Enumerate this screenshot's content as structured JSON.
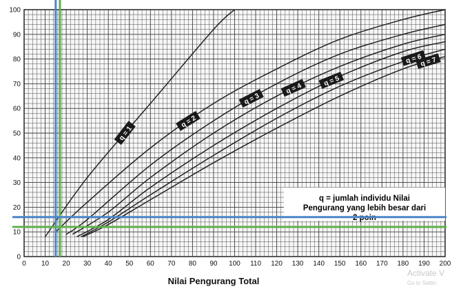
{
  "chart_data": {
    "type": "line",
    "xlabel": "Nilai Pengurang Total",
    "ylabel": "",
    "xlim": [
      0,
      200
    ],
    "ylim": [
      0,
      100
    ],
    "x_ticks": [
      0,
      10,
      20,
      30,
      40,
      50,
      60,
      70,
      80,
      90,
      100,
      110,
      120,
      130,
      140,
      150,
      160,
      170,
      180,
      190,
      200
    ],
    "y_ticks": [
      0,
      10,
      20,
      30,
      40,
      50,
      60,
      70,
      80,
      90,
      100
    ],
    "grid": true,
    "series": [
      {
        "name": "q = 1",
        "x": [
          10,
          30,
          60,
          90,
          100
        ],
        "y": [
          8,
          32,
          62,
          92,
          100
        ]
      },
      {
        "name": "q = 2",
        "x": [
          15,
          30,
          60,
          90,
          120,
          150,
          180,
          200
        ],
        "y": [
          10,
          22,
          44,
          62,
          76,
          88,
          96,
          100
        ]
      },
      {
        "name": "q = 3",
        "x": [
          20,
          30,
          60,
          90,
          120,
          150,
          180,
          200
        ],
        "y": [
          9,
          15,
          37,
          55,
          70,
          82,
          90,
          94
        ]
      },
      {
        "name": "q = 4",
        "x": [
          23,
          40,
          60,
          90,
          120,
          150,
          180,
          200
        ],
        "y": [
          9,
          18,
          32,
          50,
          65,
          77,
          86,
          90
        ]
      },
      {
        "name": "q = 5",
        "x": [
          25,
          40,
          60,
          90,
          120,
          150,
          180,
          200
        ],
        "y": [
          8,
          15,
          28,
          45,
          60,
          73,
          83,
          87
        ]
      },
      {
        "name": "q = 6",
        "x": [
          27,
          40,
          60,
          90,
          120,
          150,
          180,
          200
        ],
        "y": [
          8,
          14,
          25,
          41,
          56,
          69,
          79,
          84
        ]
      },
      {
        "name": "q = 7",
        "x": [
          28,
          40,
          60,
          90,
          120,
          150,
          180,
          200
        ],
        "y": [
          8,
          13,
          23,
          38,
          52,
          65,
          76,
          81
        ]
      }
    ],
    "annotations": {
      "note_line1": "q = jumlah individu Nilai",
      "note_line2": "Pengurang yang lebih besar dari",
      "note_line3": "2 poin"
    },
    "reference_lines": [
      {
        "orientation": "vertical",
        "x": 15,
        "color": "#4a86c8"
      },
      {
        "orientation": "vertical",
        "x": 17,
        "color": "#5fb04a"
      },
      {
        "orientation": "horizontal",
        "y": 16,
        "color": "#4a86c8"
      },
      {
        "orientation": "horizontal",
        "y": 12,
        "color": "#5fb04a"
      }
    ],
    "colors": {
      "curve": "#222222",
      "grid": "#3a3a3a",
      "label_bg": "#1a1a1a"
    }
  },
  "watermark": {
    "line1": "Activate V",
    "line2": "Go to Settin"
  }
}
